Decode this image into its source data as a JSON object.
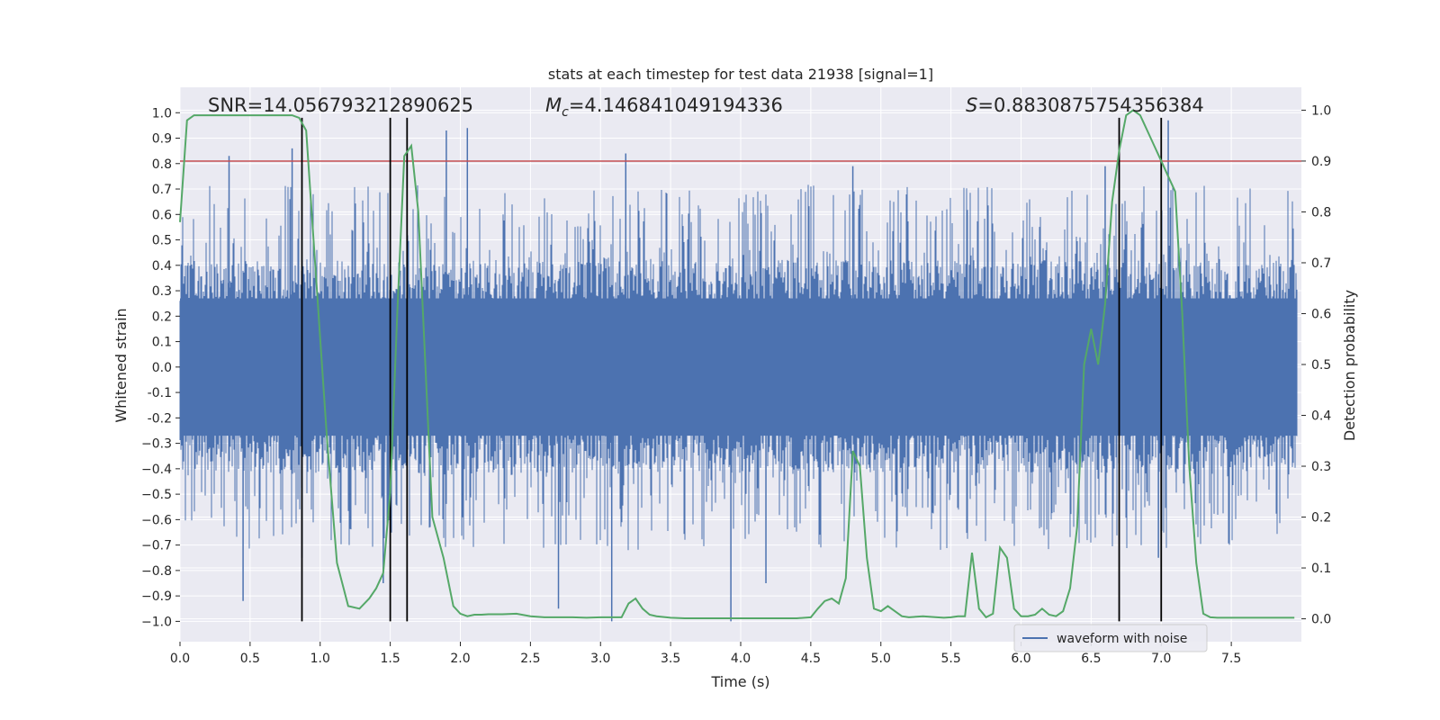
{
  "chart_data": {
    "type": "line",
    "title": "stats at each timestep for test data 21938 [signal=1]",
    "xlabel": "Time (s)",
    "ylabel": "Whitened strain",
    "y2label": "Detection probability",
    "xlim": [
      0.0,
      8.0
    ],
    "ylim": [
      -1.08,
      1.1
    ],
    "y2lim": [
      -0.045,
      1.045
    ],
    "x_ticks": [
      0.0,
      0.5,
      1.0,
      1.5,
      2.0,
      2.5,
      3.0,
      3.5,
      4.0,
      4.5,
      5.0,
      5.5,
      6.0,
      6.5,
      7.0,
      7.5
    ],
    "x_tick_labels": [
      "0.0",
      "0.5",
      "1.0",
      "1.5",
      "2.0",
      "2.5",
      "3.0",
      "3.5",
      "4.0",
      "4.5",
      "5.0",
      "5.5",
      "6.0",
      "6.5",
      "7.0",
      "7.5"
    ],
    "y_ticks": [
      1.0,
      0.9,
      0.8,
      0.7,
      0.6,
      0.5,
      0.4,
      0.3,
      0.2,
      0.1,
      0.0,
      -0.1,
      -0.2,
      -0.3,
      -0.4,
      -0.5,
      -0.6,
      -0.7,
      -0.8,
      -0.9,
      -1.0
    ],
    "y_tick_labels": [
      "1.0",
      "0.9",
      "0.8",
      "0.7",
      "0.6",
      "0.5",
      "0.4",
      "0.3",
      "0.2",
      "0.1",
      "0.0",
      "-0.1",
      "-0.2",
      "−0.3",
      "−0.4",
      "−0.5",
      "−0.6",
      "−0.7",
      "−0.8",
      "−0.9",
      "−1.0"
    ],
    "y2_ticks": [
      1.0,
      0.9,
      0.8,
      0.7,
      0.6,
      0.5,
      0.4,
      0.3,
      0.2,
      0.1,
      0.0
    ],
    "y2_tick_labels": [
      "1.0",
      "0.9",
      "0.8",
      "0.7",
      "0.6",
      "0.5",
      "0.4",
      "0.3",
      "0.2",
      "0.1",
      "0.0"
    ],
    "grid": true,
    "annotations": [
      {
        "kind": "snr",
        "label": "SNR",
        "value": "=14.056793212890625"
      },
      {
        "kind": "mc",
        "symbol": "M",
        "sub": "c",
        "value": "=4.146841049194336"
      },
      {
        "kind": "s",
        "symbol": "S",
        "value": "=0.8830875754356384"
      }
    ],
    "legend": {
      "entries": [
        "waveform with noise"
      ],
      "placement": "bottom-right"
    },
    "series": [
      {
        "name": "waveform with noise",
        "color": "#4c72b0",
        "kind": "noise-band",
        "y_core_range": [
          -0.42,
          0.42
        ],
        "spikes": [
          {
            "x": 0.35,
            "y": 0.83
          },
          {
            "x": 0.45,
            "y": -0.92
          },
          {
            "x": 0.8,
            "y": 0.86
          },
          {
            "x": 0.87,
            "y": -0.75
          },
          {
            "x": 1.45,
            "y": -0.85
          },
          {
            "x": 1.62,
            "y": -0.85
          },
          {
            "x": 1.9,
            "y": 0.93
          },
          {
            "x": 2.05,
            "y": 0.94
          },
          {
            "x": 2.7,
            "y": -0.95
          },
          {
            "x": 3.08,
            "y": -1.0
          },
          {
            "x": 3.18,
            "y": 0.84
          },
          {
            "x": 3.93,
            "y": -1.0
          },
          {
            "x": 4.18,
            "y": -0.85
          },
          {
            "x": 4.8,
            "y": 0.79
          },
          {
            "x": 6.6,
            "y": 0.79
          },
          {
            "x": 6.98,
            "y": -0.75
          },
          {
            "x": 7.05,
            "y": 0.97
          }
        ]
      },
      {
        "name": "",
        "color": "#55a868",
        "kind": "probability",
        "axis": "right",
        "x": [
          0.0,
          0.05,
          0.1,
          0.2,
          0.3,
          0.4,
          0.5,
          0.6,
          0.7,
          0.8,
          0.85,
          0.9,
          1.0,
          1.05,
          1.12,
          1.2,
          1.28,
          1.35,
          1.4,
          1.45,
          1.5,
          1.55,
          1.6,
          1.65,
          1.7,
          1.75,
          1.8,
          1.88,
          1.95,
          2.0,
          2.05,
          2.1,
          2.15,
          2.2,
          2.3,
          2.4,
          2.5,
          2.6,
          2.7,
          2.8,
          2.9,
          3.0,
          3.1,
          3.15,
          3.2,
          3.25,
          3.3,
          3.35,
          3.4,
          3.5,
          3.6,
          3.7,
          3.8,
          3.9,
          4.0,
          4.1,
          4.2,
          4.3,
          4.4,
          4.5,
          4.55,
          4.6,
          4.65,
          4.7,
          4.75,
          4.8,
          4.85,
          4.9,
          4.95,
          5.0,
          5.05,
          5.1,
          5.15,
          5.2,
          5.3,
          5.4,
          5.45,
          5.5,
          5.55,
          5.6,
          5.65,
          5.7,
          5.75,
          5.8,
          5.85,
          5.9,
          5.95,
          6.0,
          6.05,
          6.1,
          6.15,
          6.2,
          6.25,
          6.3,
          6.35,
          6.4,
          6.45,
          6.5,
          6.55,
          6.6,
          6.65,
          6.7,
          6.75,
          6.8,
          6.85,
          6.9,
          6.95,
          7.0,
          7.05,
          7.1,
          7.15,
          7.2,
          7.25,
          7.3,
          7.35,
          7.4,
          7.5,
          7.6,
          7.7,
          7.8,
          7.95
        ],
        "y": [
          0.78,
          0.98,
          0.99,
          0.99,
          0.99,
          0.99,
          0.99,
          0.99,
          0.99,
          0.99,
          0.985,
          0.96,
          0.55,
          0.35,
          0.11,
          0.025,
          0.02,
          0.04,
          0.06,
          0.09,
          0.25,
          0.6,
          0.91,
          0.93,
          0.8,
          0.5,
          0.2,
          0.12,
          0.025,
          0.01,
          0.005,
          0.008,
          0.008,
          0.009,
          0.009,
          0.01,
          0.005,
          0.003,
          0.003,
          0.003,
          0.002,
          0.003,
          0.003,
          0.003,
          0.03,
          0.04,
          0.02,
          0.008,
          0.005,
          0.002,
          0.001,
          0.001,
          0.001,
          0.001,
          0.001,
          0.001,
          0.001,
          0.001,
          0.001,
          0.003,
          0.02,
          0.035,
          0.04,
          0.03,
          0.08,
          0.33,
          0.3,
          0.12,
          0.02,
          0.015,
          0.025,
          0.015,
          0.005,
          0.003,
          0.005,
          0.003,
          0.002,
          0.003,
          0.005,
          0.005,
          0.13,
          0.02,
          0.003,
          0.01,
          0.14,
          0.12,
          0.02,
          0.005,
          0.005,
          0.008,
          0.02,
          0.008,
          0.005,
          0.015,
          0.06,
          0.18,
          0.5,
          0.57,
          0.5,
          0.62,
          0.82,
          0.92,
          0.99,
          1.0,
          0.99,
          0.96,
          0.93,
          0.9,
          0.87,
          0.84,
          0.6,
          0.3,
          0.11,
          0.01,
          0.003,
          0.002,
          0.002,
          0.002,
          0.002,
          0.002,
          0.002
        ]
      }
    ],
    "threshold": {
      "color": "#c44e52",
      "y2": 0.9
    },
    "vertical_lines": {
      "color": "#000000",
      "x": [
        0.87,
        1.5,
        1.62,
        6.7,
        7.0
      ]
    }
  }
}
